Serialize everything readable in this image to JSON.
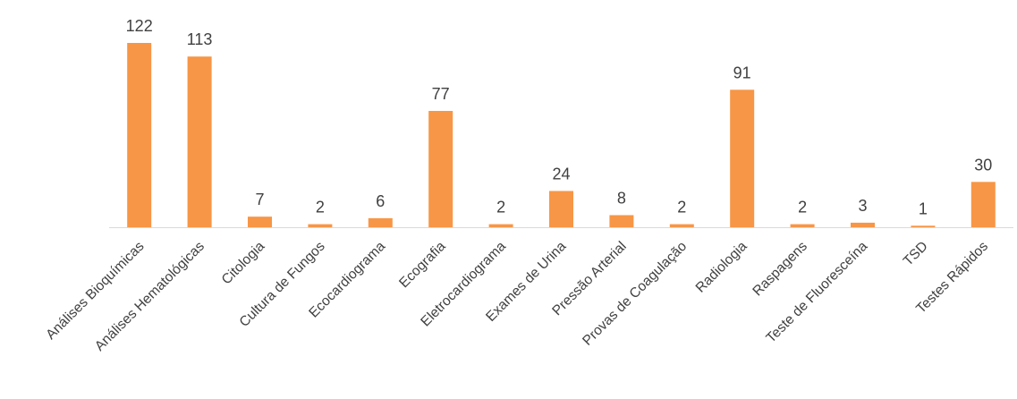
{
  "chart_data": {
    "type": "bar",
    "title": "",
    "xlabel": "",
    "ylabel": "",
    "ylim": [
      0,
      122
    ],
    "grid": false,
    "legend": "none",
    "bar_color": "#F79646",
    "axis_color": "#D9D9D9",
    "text_color": "#404040",
    "categories": [
      "Análises Bioquímicas",
      "Análises Hematológicas",
      "Citologia",
      "Cultura de Fungos",
      "Ecocardiograma",
      "Ecografia",
      "Eletrocardiograma",
      "Exames de Urina",
      "Pressão Arterial",
      "Provas de Coagulação",
      "Radiologia",
      "Raspagens",
      "Teste de Fluoresceína",
      "TSD",
      "Testes Rápidos"
    ],
    "values": [
      122,
      113,
      7,
      2,
      6,
      77,
      2,
      24,
      8,
      2,
      91,
      2,
      3,
      1,
      30
    ]
  }
}
